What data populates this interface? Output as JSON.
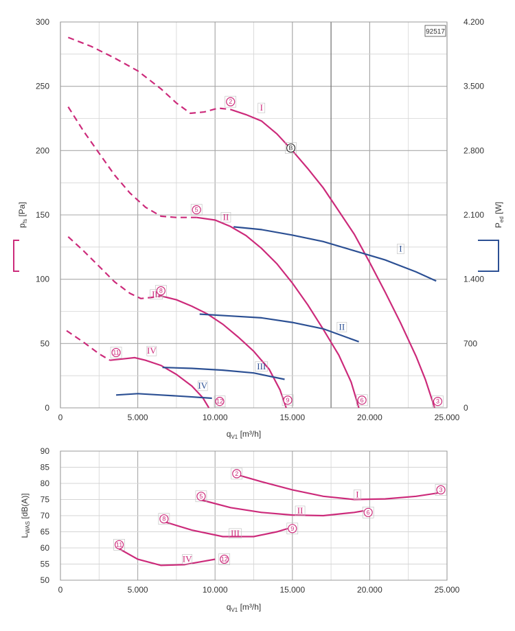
{
  "colors": {
    "pressure": "#cc2a7a",
    "power": "#2b4f93",
    "grid": "#d4d4d4",
    "grid_major": "#a8a8a8"
  },
  "chart_data": [
    {
      "type": "line",
      "id": "performance",
      "code": "92517",
      "xlabel": "q",
      "xlabel_sub": "V1",
      "xlabel_unit": " [m³/h]",
      "ylabel": "p",
      "ylabel_sub": "fs",
      "ylabel_unit": " [Pa]",
      "y2label": "P",
      "y2label_sub": "ed",
      "y2label_unit": " [W]",
      "xlim": [
        0,
        25000
      ],
      "ylim": [
        0,
        300
      ],
      "y2lim": [
        0,
        4200
      ],
      "x_ticks": [
        0,
        5000,
        10000,
        15000,
        20000,
        25000
      ],
      "x_tick_labels": [
        "0",
        "5.000",
        "10.000",
        "15.000",
        "20.000",
        "25.000"
      ],
      "y_ticks": [
        0,
        50,
        100,
        150,
        200,
        250,
        300
      ],
      "y_tick_labels": [
        "0",
        "50",
        "100",
        "150",
        "200",
        "250",
        "300"
      ],
      "y2_ticks": [
        0,
        700,
        1400,
        2100,
        2800,
        3500,
        4200
      ],
      "y2_tick_labels": [
        "0",
        "700",
        "1.400",
        "2.100",
        "2.800",
        "3.500",
        "4.200"
      ],
      "pressure_series": [
        {
          "label": "I",
          "dashed": [
            [
              500,
              288
            ],
            [
              2000,
              281
            ],
            [
              3500,
              272
            ],
            [
              5000,
              262
            ],
            [
              6500,
              248
            ],
            [
              7500,
              237
            ],
            [
              8400,
              229
            ],
            [
              9300,
              230
            ],
            [
              10200,
              233
            ],
            [
              11000,
              232
            ]
          ],
          "solid": [
            [
              11000,
              232
            ],
            [
              12000,
              228
            ],
            [
              13000,
              223
            ],
            [
              14000,
              213
            ],
            [
              15000,
              200
            ],
            [
              16000,
              186
            ],
            [
              17000,
              171
            ],
            [
              18000,
              153
            ],
            [
              19000,
              135
            ],
            [
              20000,
              113
            ],
            [
              21000,
              90
            ],
            [
              22000,
              66
            ],
            [
              23000,
              40
            ],
            [
              23600,
              22
            ],
            [
              24200,
              0
            ]
          ],
          "label_pos": [
            13000,
            230
          ]
        },
        {
          "label": "II",
          "dashed": [
            [
              500,
              234
            ],
            [
              1500,
              215
            ],
            [
              2500,
              198
            ],
            [
              3500,
              181
            ],
            [
              4500,
              167
            ],
            [
              5500,
              156
            ],
            [
              6500,
              149
            ],
            [
              7500,
              148
            ],
            [
              8500,
              148
            ],
            [
              8800,
              148
            ]
          ],
          "solid": [
            [
              8800,
              148
            ],
            [
              10000,
              146
            ],
            [
              11000,
              141
            ],
            [
              12000,
              134
            ],
            [
              13000,
              124
            ],
            [
              14000,
              112
            ],
            [
              15000,
              97
            ],
            [
              16000,
              80
            ],
            [
              17000,
              61
            ],
            [
              18000,
              41
            ],
            [
              18800,
              20
            ],
            [
              19300,
              0
            ]
          ],
          "label_pos": [
            10700,
            145
          ]
        },
        {
          "label": "III",
          "dashed": [
            [
              500,
              133
            ],
            [
              1500,
              122
            ],
            [
              2500,
              110
            ],
            [
              3500,
              98
            ],
            [
              4500,
              89
            ],
            [
              5200,
              85
            ],
            [
              6000,
              86
            ],
            [
              6500,
              87
            ]
          ],
          "solid": [
            [
              6500,
              87
            ],
            [
              7500,
              84
            ],
            [
              8500,
              79
            ],
            [
              9500,
              73
            ],
            [
              10500,
              65
            ],
            [
              11500,
              55
            ],
            [
              12500,
              44
            ],
            [
              13500,
              30
            ],
            [
              14200,
              14
            ],
            [
              14600,
              0
            ]
          ],
          "label_pos": [
            6200,
            85
          ]
        },
        {
          "label": "IV",
          "dashed": [
            [
              400,
              60
            ],
            [
              1500,
              51
            ],
            [
              2500,
              42
            ],
            [
              3200,
              37
            ]
          ],
          "solid": [
            [
              3200,
              37
            ],
            [
              4000,
              38
            ],
            [
              4800,
              39
            ],
            [
              5500,
              37
            ],
            [
              6500,
              33
            ],
            [
              7500,
              26
            ],
            [
              8500,
              17
            ],
            [
              9200,
              8
            ],
            [
              9600,
              0
            ]
          ],
          "label_pos": [
            5900,
            41
          ]
        }
      ],
      "power_series": [
        {
          "label": "I",
          "points": [
            [
              11200,
              1970
            ],
            [
              13000,
              1940
            ],
            [
              15000,
              1880
            ],
            [
              17000,
              1810
            ],
            [
              19000,
              1710
            ],
            [
              21000,
              1610
            ],
            [
              23000,
              1480
            ],
            [
              24300,
              1380
            ]
          ],
          "label_pos": [
            22000,
            1700
          ]
        },
        {
          "label": "II",
          "points": [
            [
              9000,
              1020
            ],
            [
              11000,
              1000
            ],
            [
              13000,
              980
            ],
            [
              15000,
              930
            ],
            [
              17000,
              860
            ],
            [
              19300,
              720
            ]
          ],
          "label_pos": [
            18200,
            850
          ]
        },
        {
          "label": "III",
          "points": [
            [
              6600,
              440
            ],
            [
              8500,
              430
            ],
            [
              10500,
              410
            ],
            [
              12500,
              380
            ],
            [
              14500,
              310
            ]
          ],
          "label_pos": [
            13000,
            420
          ]
        },
        {
          "label": "IV",
          "points": [
            [
              3600,
              140
            ],
            [
              5000,
              155
            ],
            [
              6500,
              140
            ],
            [
              8000,
              125
            ],
            [
              9800,
              105
            ]
          ],
          "label_pos": [
            9200,
            210
          ]
        }
      ],
      "point_markers": [
        {
          "label": "2",
          "x": 11000,
          "y": 238
        },
        {
          "label": "3",
          "x": 24400,
          "y": 5
        },
        {
          "label": "5",
          "x": 8800,
          "y": 154
        },
        {
          "label": "6",
          "x": 19500,
          "y": 6
        },
        {
          "label": "8",
          "x": 6500,
          "y": 91
        },
        {
          "label": "9",
          "x": 14700,
          "y": 6
        },
        {
          "label": "11",
          "x": 3600,
          "y": 43
        },
        {
          "label": "12",
          "x": 10300,
          "y": 5
        },
        {
          "label": "B",
          "x": 14900,
          "y": 202,
          "style": "dark"
        }
      ]
    },
    {
      "type": "line",
      "id": "sound",
      "xlabel": "q",
      "xlabel_sub": "V1",
      "xlabel_unit": " [m³/h]",
      "ylabel": "L",
      "ylabel_sub": "WAS",
      "ylabel_unit": " [dB(A)]",
      "xlim": [
        0,
        25000
      ],
      "ylim": [
        50,
        90
      ],
      "x_ticks": [
        0,
        5000,
        10000,
        15000,
        20000,
        25000
      ],
      "x_tick_labels": [
        "0",
        "5.000",
        "10.000",
        "15.000",
        "20.000",
        "25.000"
      ],
      "y_ticks": [
        50,
        55,
        60,
        65,
        70,
        75,
        80,
        85,
        90
      ],
      "y_tick_labels": [
        "50",
        "55",
        "60",
        "65",
        "70",
        "75",
        "80",
        "85",
        "90"
      ],
      "series": [
        {
          "label": "I",
          "points": [
            [
              11200,
              83
            ],
            [
              13000,
              80.5
            ],
            [
              15000,
              78
            ],
            [
              17000,
              76
            ],
            [
              19000,
              75
            ],
            [
              21000,
              75.2
            ],
            [
              23000,
              76
            ],
            [
              24400,
              77
            ]
          ],
          "label_pos": [
            19200,
            76.5
          ]
        },
        {
          "label": "II",
          "points": [
            [
              9000,
              75
            ],
            [
              11000,
              72.5
            ],
            [
              13000,
              71
            ],
            [
              15000,
              70.2
            ],
            [
              17000,
              70
            ],
            [
              19000,
              71
            ],
            [
              19600,
              71.5
            ]
          ],
          "label_pos": [
            15500,
            71.5
          ]
        },
        {
          "label": "III",
          "points": [
            [
              6800,
              68
            ],
            [
              8500,
              65.5
            ],
            [
              10500,
              63.5
            ],
            [
              12500,
              63.5
            ],
            [
              14000,
              65
            ],
            [
              14700,
              66
            ]
          ],
          "label_pos": [
            11300,
            64.5
          ]
        },
        {
          "label": "IV",
          "points": [
            [
              3700,
              60
            ],
            [
              5000,
              56.5
            ],
            [
              6500,
              54.6
            ],
            [
              8000,
              54.8
            ],
            [
              9200,
              55.8
            ],
            [
              10000,
              56.5
            ]
          ],
          "label_pos": [
            8200,
            56.5
          ]
        }
      ],
      "point_markers": [
        {
          "label": "2",
          "x": 11400,
          "y": 83
        },
        {
          "label": "3",
          "x": 24600,
          "y": 78
        },
        {
          "label": "5",
          "x": 9100,
          "y": 76
        },
        {
          "label": "6",
          "x": 19900,
          "y": 71
        },
        {
          "label": "8",
          "x": 6700,
          "y": 69
        },
        {
          "label": "9",
          "x": 15000,
          "y": 66
        },
        {
          "label": "11",
          "x": 3800,
          "y": 61
        },
        {
          "label": "12",
          "x": 10600,
          "y": 56.5
        }
      ]
    }
  ]
}
